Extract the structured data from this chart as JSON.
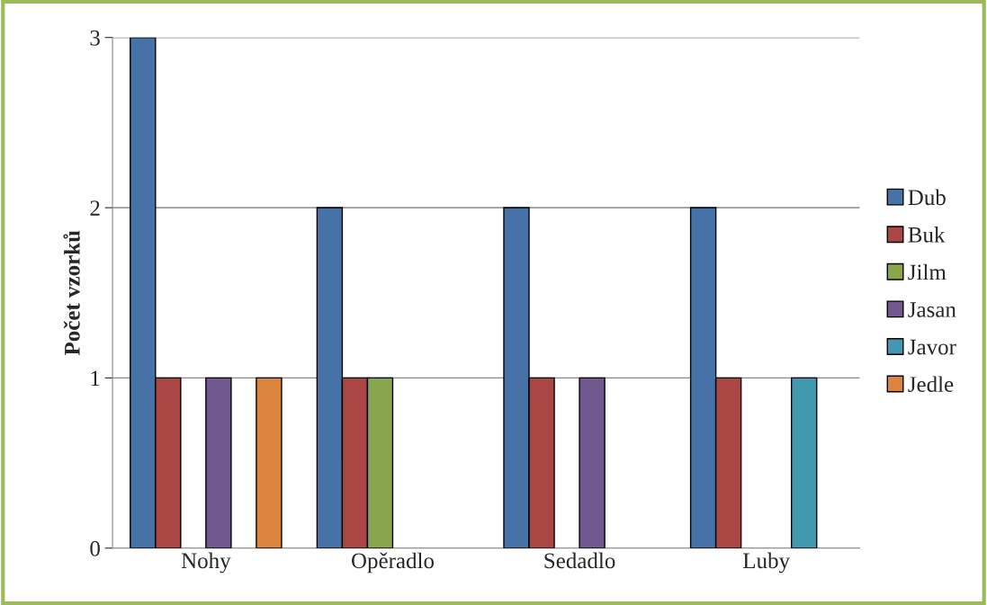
{
  "chart_data": {
    "type": "bar",
    "ylabel": "Počet vzorků",
    "categories": [
      "Nohy",
      "Opěradlo",
      "Sedadlo",
      "Luby"
    ],
    "series": [
      {
        "name": "Dub",
        "color": "#4672a8",
        "values": [
          3,
          2,
          2,
          2
        ]
      },
      {
        "name": "Buk",
        "color": "#aa4643",
        "values": [
          1,
          1,
          1,
          1
        ]
      },
      {
        "name": "Jilm",
        "color": "#89a54e",
        "values": [
          null,
          1,
          null,
          null
        ]
      },
      {
        "name": "Jasan",
        "color": "#71588f",
        "values": [
          1,
          null,
          1,
          null
        ]
      },
      {
        "name": "Javor",
        "color": "#4198af",
        "values": [
          null,
          null,
          null,
          1
        ]
      },
      {
        "name": "Jedle",
        "color": "#db843d",
        "values": [
          1,
          null,
          null,
          null
        ]
      }
    ],
    "ylim": [
      0,
      3
    ],
    "yticks": [
      0,
      1,
      2,
      3
    ],
    "grid": "y",
    "legend": "right"
  }
}
